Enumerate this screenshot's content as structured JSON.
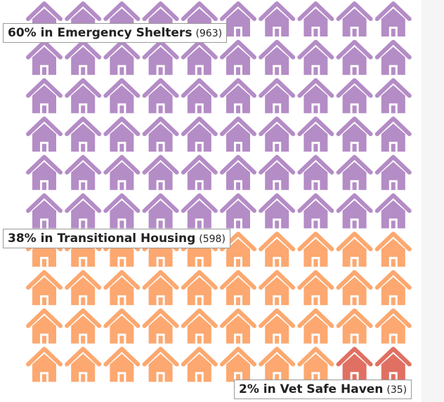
{
  "chart_data": {
    "type": "waffle",
    "rows": 10,
    "columns": 10,
    "series": [
      {
        "name": "60% in Emergency Shelters",
        "color": "#b48cc6",
        "value": 60,
        "count": 963,
        "count_label": "(963)"
      },
      {
        "name": "38% in Transitional Housing",
        "color": "#fca870",
        "value": 38,
        "count": 598,
        "count_label": "(598)"
      },
      {
        "name": "2% in Vet Safe Haven",
        "color": "#e07062",
        "value": 2,
        "count": 35,
        "count_label": "(35)"
      }
    ]
  }
}
